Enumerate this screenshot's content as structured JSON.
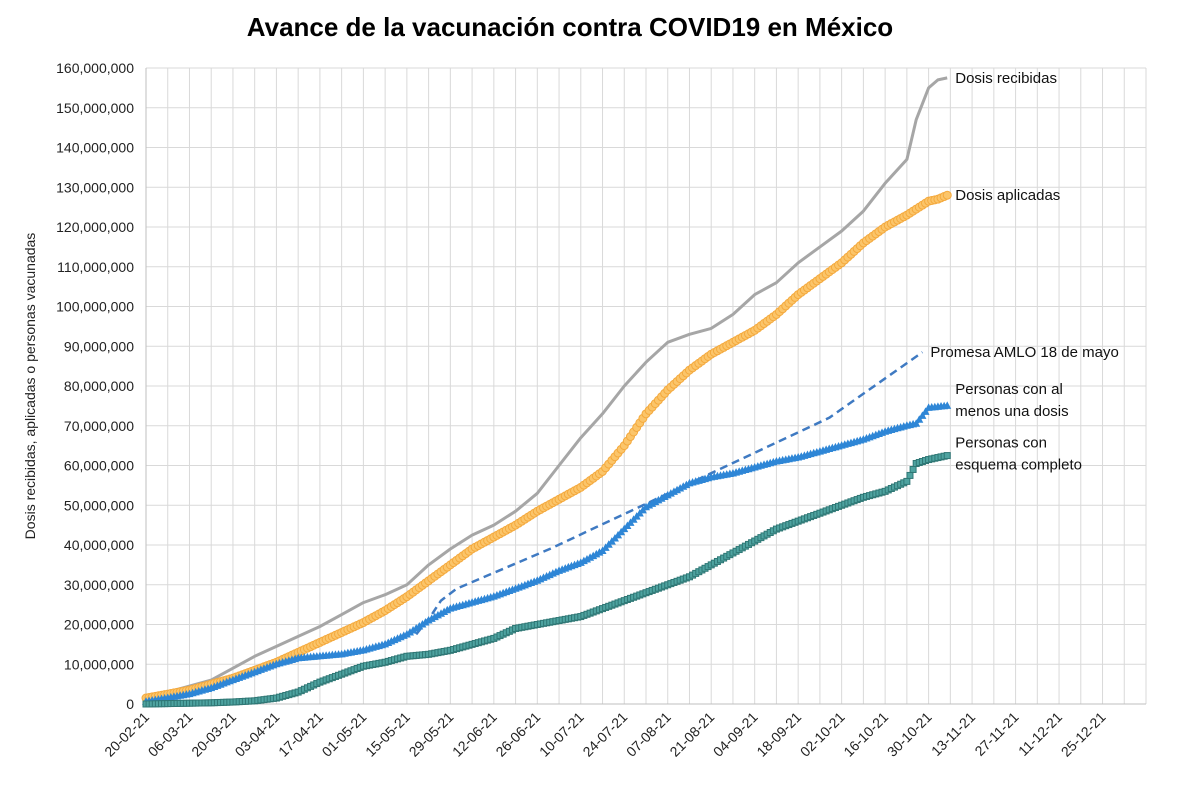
{
  "chart_data": {
    "type": "line",
    "title": "Avance de la vacunación contra COVID19 en México",
    "xlabel": "",
    "ylabel": "Dosis recibidas, aplicadas o personas vacunadas",
    "ylim": [
      0,
      160000000
    ],
    "y_ticks": [
      0,
      10000000,
      20000000,
      30000000,
      40000000,
      50000000,
      60000000,
      70000000,
      80000000,
      90000000,
      100000000,
      110000000,
      120000000,
      130000000,
      140000000,
      150000000,
      160000000
    ],
    "y_tick_labels": [
      "0",
      "10,000,000",
      "20,000,000",
      "30,000,000",
      "40,000,000",
      "50,000,000",
      "60,000,000",
      "70,000,000",
      "80,000,000",
      "90,000,000",
      "100,000,000",
      "110,000,000",
      "120,000,000",
      "130,000,000",
      "140,000,000",
      "150,000,000",
      "160,000,000"
    ],
    "x_range_days": [
      0,
      322
    ],
    "x_tick_labels": [
      "20-02-21",
      "06-03-21",
      "20-03-21",
      "03-04-21",
      "17-04-21",
      "01-05-21",
      "15-05-21",
      "29-05-21",
      "12-06-21",
      "26-06-21",
      "10-07-21",
      "24-07-21",
      "07-08-21",
      "21-08-21",
      "04-09-21",
      "18-09-21",
      "02-10-21",
      "16-10-21",
      "30-10-21",
      "13-11-21",
      "27-11-21",
      "11-12-21",
      "25-12-21"
    ],
    "x_tick_days": [
      0,
      14,
      28,
      42,
      56,
      70,
      84,
      98,
      112,
      126,
      140,
      154,
      168,
      182,
      196,
      210,
      224,
      238,
      252,
      266,
      280,
      294,
      308
    ],
    "grid": true,
    "series": [
      {
        "name": "Dosis recibidas",
        "label": "Dosis recibidas",
        "color": "#a6a6a6",
        "style": "solid",
        "marker": "none",
        "x": [
          0,
          7,
          14,
          21,
          28,
          35,
          42,
          49,
          56,
          63,
          70,
          77,
          84,
          91,
          98,
          105,
          112,
          119,
          126,
          133,
          140,
          147,
          154,
          161,
          168,
          175,
          182,
          189,
          196,
          203,
          210,
          217,
          224,
          231,
          238,
          245,
          248,
          252,
          255,
          258
        ],
        "values": [
          1500000,
          3000000,
          4500000,
          6000000,
          9000000,
          12000000,
          14500000,
          17000000,
          19500000,
          22500000,
          25500000,
          27500000,
          30000000,
          35000000,
          39000000,
          42500000,
          45000000,
          48500000,
          53000000,
          60000000,
          67000000,
          73000000,
          80000000,
          86000000,
          91000000,
          93000000,
          94500000,
          98000000,
          103000000,
          106000000,
          111000000,
          115000000,
          119000000,
          124000000,
          131000000,
          137000000,
          147000000,
          155000000,
          157000000,
          157500000
        ]
      },
      {
        "name": "Dosis aplicadas",
        "label": "Dosis aplicadas",
        "color": "#f4a93d",
        "style": "solid",
        "marker": "circle",
        "x": [
          0,
          7,
          14,
          21,
          28,
          35,
          42,
          49,
          56,
          63,
          70,
          77,
          84,
          91,
          98,
          105,
          112,
          119,
          126,
          133,
          140,
          147,
          154,
          161,
          168,
          175,
          182,
          189,
          196,
          203,
          210,
          217,
          224,
          231,
          238,
          245,
          252,
          255,
          258
        ],
        "values": [
          1500000,
          2500000,
          3500000,
          5000000,
          6500000,
          8500000,
          10500000,
          13000000,
          15500000,
          18000000,
          20500000,
          23500000,
          27000000,
          31000000,
          35000000,
          39000000,
          42000000,
          45000000,
          48500000,
          51500000,
          54500000,
          58500000,
          65000000,
          73000000,
          79000000,
          84000000,
          88000000,
          91000000,
          94000000,
          98000000,
          103000000,
          107000000,
          111000000,
          116000000,
          120000000,
          123000000,
          126500000,
          127000000,
          128000000
        ]
      },
      {
        "name": "Promesa AMLO 18 de mayo",
        "label": "Promesa AMLO 18 de mayo",
        "color": "#3f7ac2",
        "style": "dashed",
        "marker": "none",
        "x": [
          87,
          92,
          95,
          100,
          130,
          160,
          190,
          220,
          250
        ],
        "values": [
          17500000,
          22500000,
          26000000,
          29000000,
          39000000,
          50000000,
          61000000,
          72000000,
          88500000
        ]
      },
      {
        "name": "Personas con al menos una dosis",
        "label_lines": [
          "Personas con al",
          "menos una dosis"
        ],
        "color": "#2e86d6",
        "style": "solid",
        "marker": "triangle",
        "x": [
          0,
          7,
          14,
          21,
          28,
          35,
          42,
          49,
          56,
          63,
          70,
          77,
          84,
          91,
          98,
          105,
          112,
          119,
          126,
          133,
          140,
          147,
          154,
          161,
          168,
          175,
          182,
          189,
          196,
          203,
          210,
          217,
          224,
          231,
          238,
          245,
          248,
          252,
          258
        ],
        "values": [
          600000,
          1500000,
          2500000,
          4000000,
          6000000,
          8000000,
          10000000,
          11500000,
          12000000,
          12500000,
          13500000,
          15000000,
          17500000,
          21000000,
          24000000,
          25500000,
          27000000,
          29000000,
          31000000,
          33500000,
          35500000,
          38500000,
          44000000,
          49500000,
          52500000,
          55500000,
          57000000,
          58000000,
          59500000,
          61000000,
          62000000,
          63500000,
          65000000,
          66500000,
          68500000,
          70000000,
          70500000,
          74500000,
          75000000
        ]
      },
      {
        "name": "Personas con esquema completo",
        "label_lines": [
          "Personas con",
          "esquema completo"
        ],
        "color": "#2f7775",
        "style": "solid",
        "marker": "square",
        "x": [
          0,
          7,
          14,
          21,
          28,
          35,
          42,
          49,
          56,
          63,
          70,
          77,
          84,
          91,
          98,
          105,
          112,
          119,
          126,
          133,
          140,
          147,
          154,
          161,
          168,
          175,
          182,
          189,
          196,
          203,
          210,
          217,
          224,
          231,
          238,
          245,
          248,
          252,
          258
        ],
        "values": [
          0,
          100000,
          200000,
          300000,
          500000,
          800000,
          1500000,
          3000000,
          5500000,
          7500000,
          9500000,
          10500000,
          12000000,
          12500000,
          13500000,
          15000000,
          16500000,
          19000000,
          20000000,
          21000000,
          22000000,
          24000000,
          26000000,
          28000000,
          30000000,
          32000000,
          35000000,
          38000000,
          41000000,
          44000000,
          46000000,
          48000000,
          50000000,
          52000000,
          53500000,
          56000000,
          60500000,
          61500000,
          62500000
        ]
      }
    ]
  }
}
